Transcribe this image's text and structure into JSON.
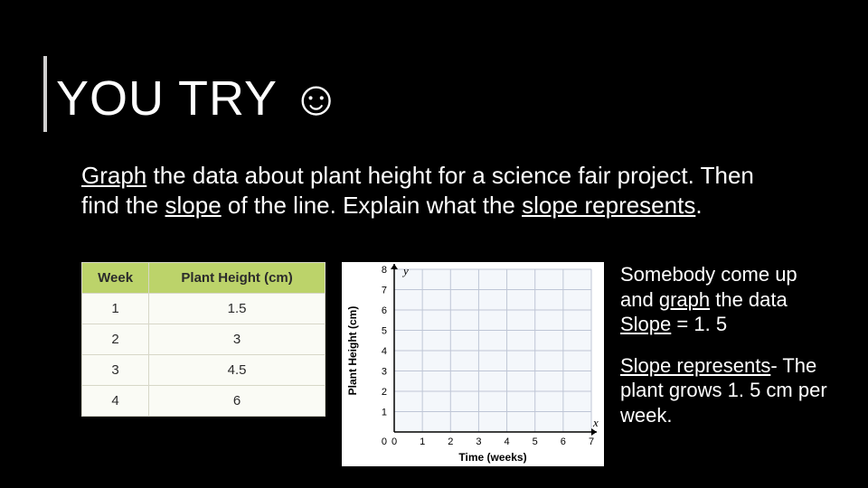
{
  "slide": {
    "background_color": "#000000",
    "text_color": "#ffffff"
  },
  "title": {
    "text": "YOU TRY ☺",
    "fontsize": 54,
    "rule_color": "#d0cfcf"
  },
  "instruction": {
    "prefix": "Graph",
    "mid1": " the data about plant height for a science fair project. Then find the ",
    "underlined1": "slope",
    "mid2": " of the line. Explain what the ",
    "underlined2": "slope represents",
    "suffix": ".",
    "fontsize": 26
  },
  "table": {
    "header_bg": "#bcd36a",
    "cell_bg": "#fafbf5",
    "border_color": "#d7d7c8",
    "text_color": "#2b2b2b",
    "columns": [
      "Week",
      "Plant Height (cm)"
    ],
    "rows": [
      [
        "1",
        "1.5"
      ],
      [
        "2",
        "3"
      ],
      [
        "3",
        "4.5"
      ],
      [
        "4",
        "6"
      ]
    ],
    "fontsize": 15
  },
  "chart": {
    "type": "empty-grid",
    "background_color": "#ffffff",
    "grid_color": "#bfc6d6",
    "axis_color": "#000000",
    "panel_fill": "#f4f7fb",
    "text_color": "#000000",
    "xlabel": "Time (weeks)",
    "ylabel": "Plant Height (cm)",
    "xlim": [
      0,
      7
    ],
    "ylim": [
      0,
      8
    ],
    "xtick_step": 1,
    "ytick_step": 1,
    "xticks": [
      0,
      1,
      2,
      3,
      4,
      5,
      6,
      7
    ],
    "yticks": [
      0,
      1,
      2,
      3,
      4,
      5,
      6,
      7,
      8
    ],
    "label_fontsize": 12,
    "tick_fontsize": 11,
    "y_axis_letter": "y",
    "x_axis_letter": "x"
  },
  "answers": {
    "line1_a": "Somebody come up and ",
    "line1_u": "graph",
    "line1_b": " the data",
    "line2_u": "Slope",
    "line2_b": " = 1. 5",
    "line3_u": "Slope represents",
    "line3_b": "- The plant grows 1. 5 cm per week.",
    "fontsize": 22
  }
}
